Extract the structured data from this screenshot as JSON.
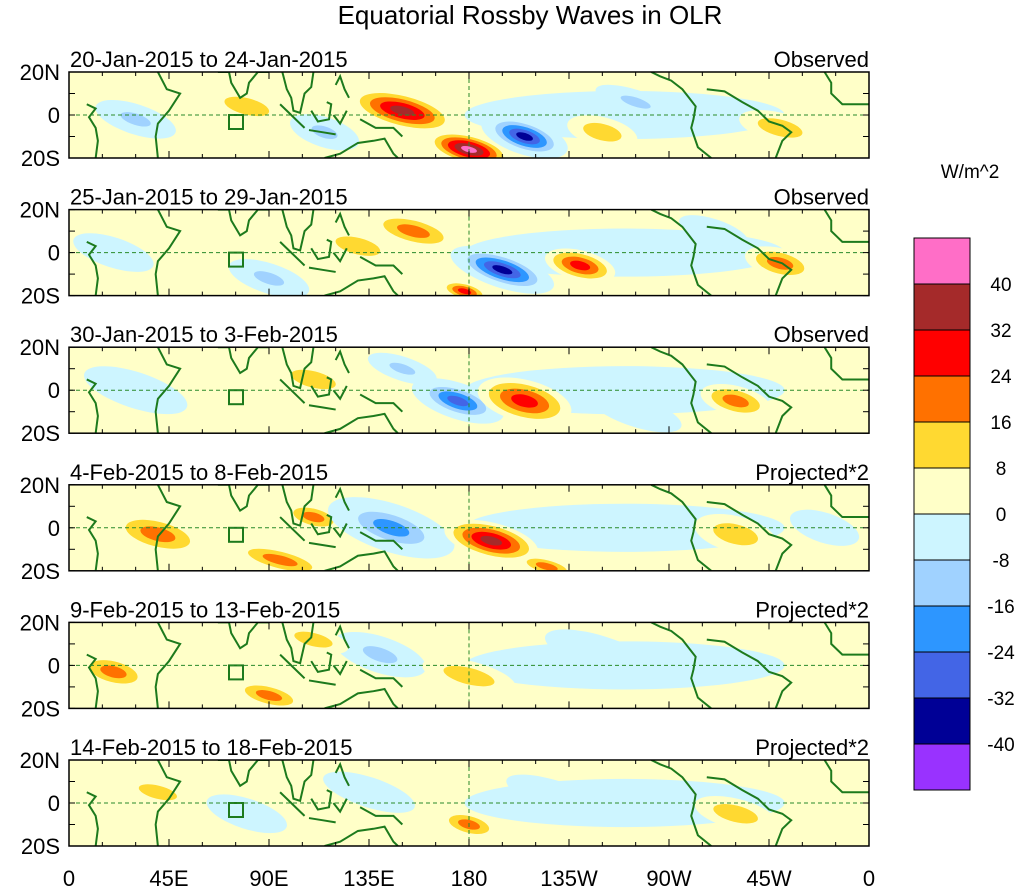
{
  "chart_data": {
    "type": "heatmap",
    "title": "Equatorial Rossby Waves in OLR",
    "units_label": "W/m^2",
    "x_ticks": [
      "0",
      "45E",
      "90E",
      "135E",
      "180",
      "135W",
      "90W",
      "45W",
      "0"
    ],
    "x_range_lon_east": [
      0,
      360
    ],
    "y_ticks": [
      "20N",
      "0",
      "20S"
    ],
    "y_range_lat": [
      -20,
      20
    ],
    "colorbar": {
      "levels": [
        "40",
        "32",
        "24",
        "16",
        "8",
        "0",
        "-8",
        "-16",
        "-24",
        "-32",
        "-40"
      ],
      "colors": [
        "#ff6ec7",
        "#a52a2a",
        "#ff0000",
        "#ff7100",
        "#ffd931",
        "#ffffc8",
        "#cdf5ff",
        "#a0d2ff",
        "#2d96ff",
        "#4365e6",
        "#000096",
        "#9932ff"
      ]
    },
    "panels": [
      {
        "period": "20-Jan-2015 to 24-Jan-2015",
        "label": "Observed",
        "anomalies": [
          {
            "lon": 150,
            "lat": 2,
            "value": 32,
            "rlon": 18,
            "rlat": 6
          },
          {
            "lon": 180,
            "lat": -16,
            "value": 40,
            "rlon": 14,
            "rlat": 5
          },
          {
            "lon": 205,
            "lat": -10,
            "value": -40,
            "rlon": 15,
            "rlat": 6
          },
          {
            "lon": 115,
            "lat": -8,
            "value": -16,
            "rlon": 12,
            "rlat": 5
          },
          {
            "lon": 30,
            "lat": -2,
            "value": -16,
            "rlon": 14,
            "rlat": 5
          },
          {
            "lon": 255,
            "lat": 6,
            "value": -16,
            "rlon": 14,
            "rlat": 4
          },
          {
            "lon": 80,
            "lat": 4,
            "value": 8,
            "rlon": 14,
            "rlat": 5
          },
          {
            "lon": 240,
            "lat": -8,
            "value": 8,
            "rlon": 12,
            "rlat": 5
          },
          {
            "lon": 320,
            "lat": -6,
            "value": 8,
            "rlon": 14,
            "rlat": 5
          }
        ]
      },
      {
        "period": "25-Jan-2015 to 29-Jan-2015",
        "label": "Observed",
        "anomalies": [
          {
            "lon": 195,
            "lat": -8,
            "value": -40,
            "rlon": 18,
            "rlat": 6
          },
          {
            "lon": 230,
            "lat": -6,
            "value": 24,
            "rlon": 12,
            "rlat": 5
          },
          {
            "lon": 155,
            "lat": 10,
            "value": 16,
            "rlon": 15,
            "rlat": 5
          },
          {
            "lon": 178,
            "lat": -18,
            "value": 24,
            "rlon": 8,
            "rlat": 3
          },
          {
            "lon": 320,
            "lat": -5,
            "value": 16,
            "rlon": 12,
            "rlat": 5
          },
          {
            "lon": 130,
            "lat": 3,
            "value": 8,
            "rlon": 14,
            "rlat": 5
          },
          {
            "lon": 90,
            "lat": -12,
            "value": -16,
            "rlon": 14,
            "rlat": 5
          },
          {
            "lon": 20,
            "lat": 0,
            "value": -8,
            "rlon": 14,
            "rlat": 5
          },
          {
            "lon": 290,
            "lat": 10,
            "value": -8,
            "rlon": 12,
            "rlat": 4
          }
        ]
      },
      {
        "period": "30-Jan-2015 to 3-Feb-2015",
        "label": "Observed",
        "anomalies": [
          {
            "lon": 175,
            "lat": -5,
            "value": -32,
            "rlon": 16,
            "rlat": 6
          },
          {
            "lon": 205,
            "lat": -5,
            "value": 24,
            "rlon": 16,
            "rlat": 7
          },
          {
            "lon": 300,
            "lat": -5,
            "value": 16,
            "rlon": 12,
            "rlat": 5
          },
          {
            "lon": 150,
            "lat": 10,
            "value": -16,
            "rlon": 12,
            "rlat": 4
          },
          {
            "lon": 30,
            "lat": 0,
            "value": -8,
            "rlon": 18,
            "rlat": 6
          },
          {
            "lon": 110,
            "lat": 5,
            "value": 8,
            "rlon": 14,
            "rlat": 5
          },
          {
            "lon": 255,
            "lat": -10,
            "value": -8,
            "rlon": 16,
            "rlat": 5
          }
        ]
      },
      {
        "period": "4-Feb-2015 to 8-Feb-2015",
        "label": "Projected*2",
        "anomalies": [
          {
            "lon": 40,
            "lat": -3,
            "value": 16,
            "rlon": 16,
            "rlat": 6
          },
          {
            "lon": 110,
            "lat": 5,
            "value": 16,
            "rlon": 10,
            "rlat": 4
          },
          {
            "lon": 95,
            "lat": -15,
            "value": 16,
            "rlon": 16,
            "rlat": 4
          },
          {
            "lon": 145,
            "lat": 0,
            "value": -24,
            "rlon": 22,
            "rlat": 8
          },
          {
            "lon": 190,
            "lat": -6,
            "value": 32,
            "rlon": 16,
            "rlat": 6
          },
          {
            "lon": 215,
            "lat": -18,
            "value": 16,
            "rlon": 10,
            "rlat": 3
          },
          {
            "lon": 300,
            "lat": -3,
            "value": 8,
            "rlon": 14,
            "rlat": 6
          },
          {
            "lon": 340,
            "lat": 0,
            "value": -8,
            "rlon": 12,
            "rlat": 5
          }
        ]
      },
      {
        "period": "9-Feb-2015 to 13-Feb-2015",
        "label": "Projected*2",
        "anomalies": [
          {
            "lon": 20,
            "lat": -3,
            "value": 16,
            "rlon": 12,
            "rlat": 5
          },
          {
            "lon": 90,
            "lat": -14,
            "value": 16,
            "rlon": 12,
            "rlat": 4
          },
          {
            "lon": 140,
            "lat": 5,
            "value": -16,
            "rlon": 16,
            "rlat": 6
          },
          {
            "lon": 180,
            "lat": -5,
            "value": 8,
            "rlon": 16,
            "rlat": 5
          },
          {
            "lon": 240,
            "lat": 5,
            "value": -8,
            "rlon": 20,
            "rlat": 6
          },
          {
            "lon": 110,
            "lat": 12,
            "value": 8,
            "rlon": 12,
            "rlat": 4
          }
        ]
      },
      {
        "period": "14-Feb-2015 to 18-Feb-2015",
        "label": "Projected*2",
        "anomalies": [
          {
            "lon": 80,
            "lat": -5,
            "value": -8,
            "rlon": 14,
            "rlat": 5
          },
          {
            "lon": 180,
            "lat": -10,
            "value": 16,
            "rlon": 10,
            "rlat": 4
          },
          {
            "lon": 135,
            "lat": 5,
            "value": -8,
            "rlon": 16,
            "rlat": 5
          },
          {
            "lon": 220,
            "lat": 3,
            "value": -8,
            "rlon": 18,
            "rlat": 5
          },
          {
            "lon": 300,
            "lat": -5,
            "value": 8,
            "rlon": 14,
            "rlat": 5
          },
          {
            "lon": 40,
            "lat": 5,
            "value": 8,
            "rlon": 12,
            "rlat": 4
          }
        ]
      }
    ]
  }
}
